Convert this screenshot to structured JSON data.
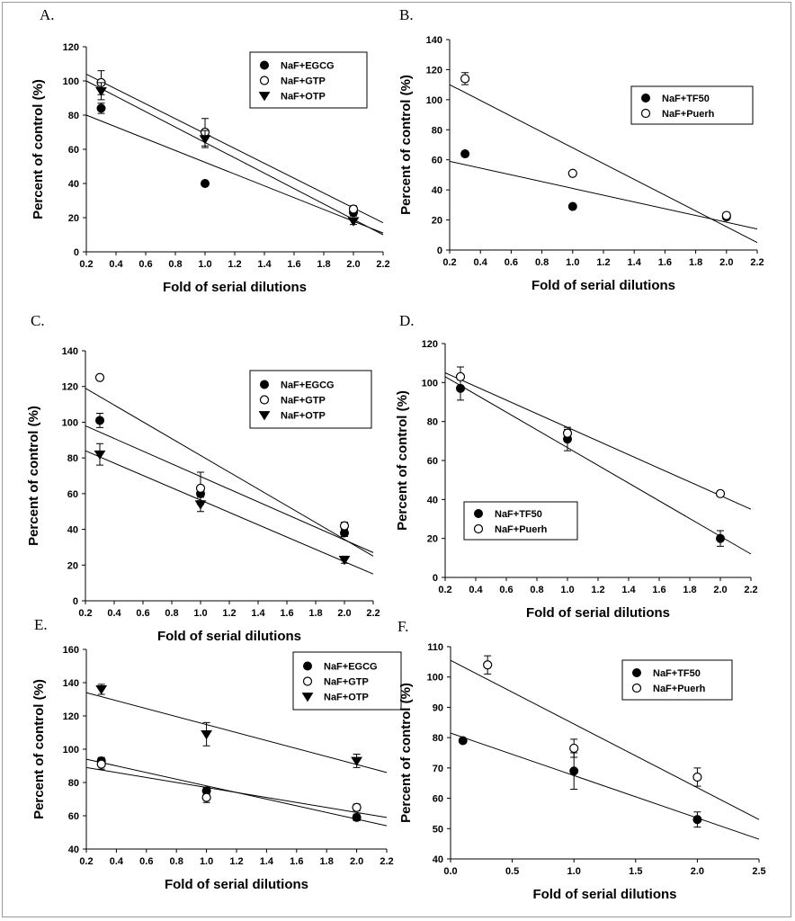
{
  "figure": {
    "colors": {
      "ink": "#000000",
      "open_fill": "#ffffff",
      "frame": "#9a9a9a"
    }
  },
  "chart_data": [
    {
      "panel_label": "A.",
      "type": "scatter",
      "title": "",
      "xlabel": "Fold of serial dilutions",
      "ylabel": "Percent of control (%)",
      "xlim": [
        0.2,
        2.2
      ],
      "ylim": [
        0,
        120
      ],
      "xticks": [
        "0.2",
        "0.4",
        "0.6",
        "0.8",
        "1.0",
        "1.2",
        "1.4",
        "1.6",
        "1.8",
        "2.0",
        "2.2"
      ],
      "yticks": [
        "0",
        "20",
        "40",
        "60",
        "80",
        "100",
        "120"
      ],
      "legend_position": "top-right",
      "series": [
        {
          "name": "NaF+EGCG",
          "marker": "filled-circle",
          "x": [
            0.3,
            1.0,
            2.0
          ],
          "y": [
            84,
            40,
            23
          ],
          "err": [
            3,
            0,
            2
          ],
          "fit": [
            [
              0.2,
              80
            ],
            [
              2.2,
              11
            ]
          ]
        },
        {
          "name": "NaF+GTP",
          "marker": "open-circle",
          "x": [
            0.3,
            1.0,
            2.0
          ],
          "y": [
            99,
            70,
            25
          ],
          "err": [
            7,
            8,
            2
          ],
          "fit": [
            [
              0.2,
              104
            ],
            [
              2.2,
              17
            ]
          ]
        },
        {
          "name": "NaF+OTP",
          "marker": "filled-triangle",
          "x": [
            0.3,
            1.0,
            2.0
          ],
          "y": [
            94,
            66,
            18
          ],
          "err": [
            5,
            5,
            2
          ],
          "fit": [
            [
              0.2,
              100
            ],
            [
              2.2,
              10
            ]
          ]
        }
      ]
    },
    {
      "panel_label": "B.",
      "type": "scatter",
      "title": "",
      "xlabel": "Fold of serial dilutions",
      "ylabel": "Percent of control (%)",
      "xlim": [
        0.2,
        2.2
      ],
      "ylim": [
        0,
        140
      ],
      "xticks": [
        "0.2",
        "0.4",
        "0.6",
        "0.8",
        "1.0",
        "1.2",
        "1.4",
        "1.6",
        "1.8",
        "2.0",
        "2.2"
      ],
      "yticks": [
        "0",
        "20",
        "40",
        "60",
        "80",
        "100",
        "120",
        "140"
      ],
      "legend_position": "top-right",
      "series": [
        {
          "name": "NaF+TF50",
          "marker": "filled-circle",
          "x": [
            0.3,
            1.0,
            2.0
          ],
          "y": [
            64,
            29,
            22
          ],
          "err": [
            0,
            0,
            0
          ],
          "fit": [
            [
              0.2,
              59
            ],
            [
              2.2,
              14
            ]
          ]
        },
        {
          "name": "NaF+Puerh",
          "marker": "open-circle",
          "x": [
            0.3,
            1.0,
            2.0
          ],
          "y": [
            114,
            51,
            23
          ],
          "err": [
            4,
            0,
            2
          ],
          "fit": [
            [
              0.2,
              110
            ],
            [
              2.2,
              5
            ]
          ]
        }
      ]
    },
    {
      "panel_label": "C.",
      "type": "scatter",
      "title": "",
      "xlabel": "Fold of serial dilutions",
      "ylabel": "Percent of control (%)",
      "xlim": [
        0.2,
        2.2
      ],
      "ylim": [
        0,
        140
      ],
      "xticks": [
        "0.2",
        "0.4",
        "0.6",
        "0.8",
        "1.0",
        "1.2",
        "1.4",
        "1.6",
        "1.8",
        "2.0",
        "2.2"
      ],
      "yticks": [
        "0",
        "20",
        "40",
        "60",
        "80",
        "100",
        "120",
        "140"
      ],
      "legend_position": "top-right",
      "series": [
        {
          "name": "NaF+EGCG",
          "marker": "filled-circle",
          "x": [
            0.3,
            1.0,
            2.0
          ],
          "y": [
            101,
            60,
            38
          ],
          "err": [
            4,
            4,
            2
          ],
          "fit": [
            [
              0.2,
              98
            ],
            [
              2.2,
              27
            ]
          ]
        },
        {
          "name": "NaF+GTP",
          "marker": "open-circle",
          "x": [
            0.3,
            1.0,
            2.0
          ],
          "y": [
            125,
            63,
            42
          ],
          "err": [
            0,
            9,
            2
          ],
          "fit": [
            [
              0.2,
              119
            ],
            [
              2.2,
              25
            ]
          ]
        },
        {
          "name": "NaF+OTP",
          "marker": "filled-triangle",
          "x": [
            0.3,
            1.0,
            2.0
          ],
          "y": [
            82,
            54,
            23
          ],
          "err": [
            6,
            4,
            2
          ],
          "fit": [
            [
              0.2,
              84
            ],
            [
              2.2,
              15
            ]
          ]
        }
      ]
    },
    {
      "panel_label": "D.",
      "type": "scatter",
      "title": "",
      "xlabel": "Fold of serial dilutions",
      "ylabel": "Percent of control (%)",
      "xlim": [
        0.2,
        2.2
      ],
      "ylim": [
        0,
        120
      ],
      "xticks": [
        "0.2",
        "0.4",
        "0.6",
        "0.8",
        "1.0",
        "1.2",
        "1.4",
        "1.6",
        "1.8",
        "2.0",
        "2.2"
      ],
      "yticks": [
        "0",
        "20",
        "40",
        "60",
        "80",
        "100",
        "120"
      ],
      "legend_position": "bottom-left",
      "series": [
        {
          "name": "NaF+TF50",
          "marker": "filled-circle",
          "x": [
            0.3,
            1.0,
            2.0
          ],
          "y": [
            97,
            71,
            20
          ],
          "err": [
            6,
            6,
            4
          ],
          "fit": [
            [
              0.2,
              103
            ],
            [
              2.2,
              12
            ]
          ]
        },
        {
          "name": "NaF+Puerh",
          "marker": "open-circle",
          "x": [
            0.3,
            1.0,
            2.0
          ],
          "y": [
            103,
            74,
            43
          ],
          "err": [
            5,
            2,
            0
          ],
          "fit": [
            [
              0.2,
              105
            ],
            [
              2.2,
              35
            ]
          ]
        }
      ]
    },
    {
      "panel_label": "E.",
      "type": "scatter",
      "title": "",
      "xlabel": "Fold of serial dilutions",
      "ylabel": "Percent of control (%)",
      "xlim": [
        0.2,
        2.2
      ],
      "ylim": [
        40,
        160
      ],
      "xticks": [
        "0.2",
        "0.4",
        "0.6",
        "0.8",
        "1.0",
        "1.2",
        "1.4",
        "1.6",
        "1.8",
        "2.0",
        "2.2"
      ],
      "yticks": [
        "40",
        "60",
        "80",
        "100",
        "120",
        "140",
        "160"
      ],
      "legend_position": "top-right",
      "series": [
        {
          "name": "NaF+EGCG",
          "marker": "filled-circle",
          "x": [
            0.3,
            1.0,
            2.0
          ],
          "y": [
            93,
            75,
            59
          ],
          "err": [
            2,
            2,
            2
          ],
          "fit": [
            [
              0.2,
              94
            ],
            [
              2.2,
              54
            ]
          ]
        },
        {
          "name": "NaF+GTP",
          "marker": "open-circle",
          "x": [
            0.3,
            1.0,
            2.0
          ],
          "y": [
            91,
            71,
            65
          ],
          "err": [
            3,
            3,
            2
          ],
          "fit": [
            [
              0.2,
              89
            ],
            [
              2.2,
              59
            ]
          ]
        },
        {
          "name": "NaF+OTP",
          "marker": "filled-triangle",
          "x": [
            0.3,
            1.0,
            2.0
          ],
          "y": [
            136,
            109,
            93
          ],
          "err": [
            3,
            7,
            4
          ],
          "fit": [
            [
              0.2,
              134
            ],
            [
              2.2,
              86
            ]
          ]
        }
      ]
    },
    {
      "panel_label": "F.",
      "type": "scatter",
      "title": "",
      "xlabel": "Fold of serial dilutions",
      "ylabel": "Percent of control (%)",
      "xlim": [
        0,
        2.5
      ],
      "ylim": [
        40,
        110
      ],
      "xticks": [
        "0.0",
        "0.5",
        "1.0",
        "1.5",
        "2.0",
        "2.5"
      ],
      "yticks": [
        "40",
        "50",
        "60",
        "70",
        "80",
        "90",
        "100",
        "110"
      ],
      "legend_position": "top-right",
      "series": [
        {
          "name": "NaF+TF50",
          "marker": "filled-circle",
          "x": [
            0.1,
            1.0,
            2.0
          ],
          "y": [
            79,
            69,
            53
          ],
          "err": [
            0,
            6,
            2.5
          ],
          "fit": [
            [
              0.0,
              81.5
            ],
            [
              2.5,
              46.5
            ]
          ]
        },
        {
          "name": "NaF+Puerh",
          "marker": "open-circle",
          "x": [
            0.3,
            1.0,
            2.0
          ],
          "y": [
            104,
            76.5,
            67
          ],
          "err": [
            3,
            3,
            3
          ],
          "fit": [
            [
              0.0,
              105.5
            ],
            [
              2.5,
              53
            ]
          ]
        }
      ]
    }
  ]
}
